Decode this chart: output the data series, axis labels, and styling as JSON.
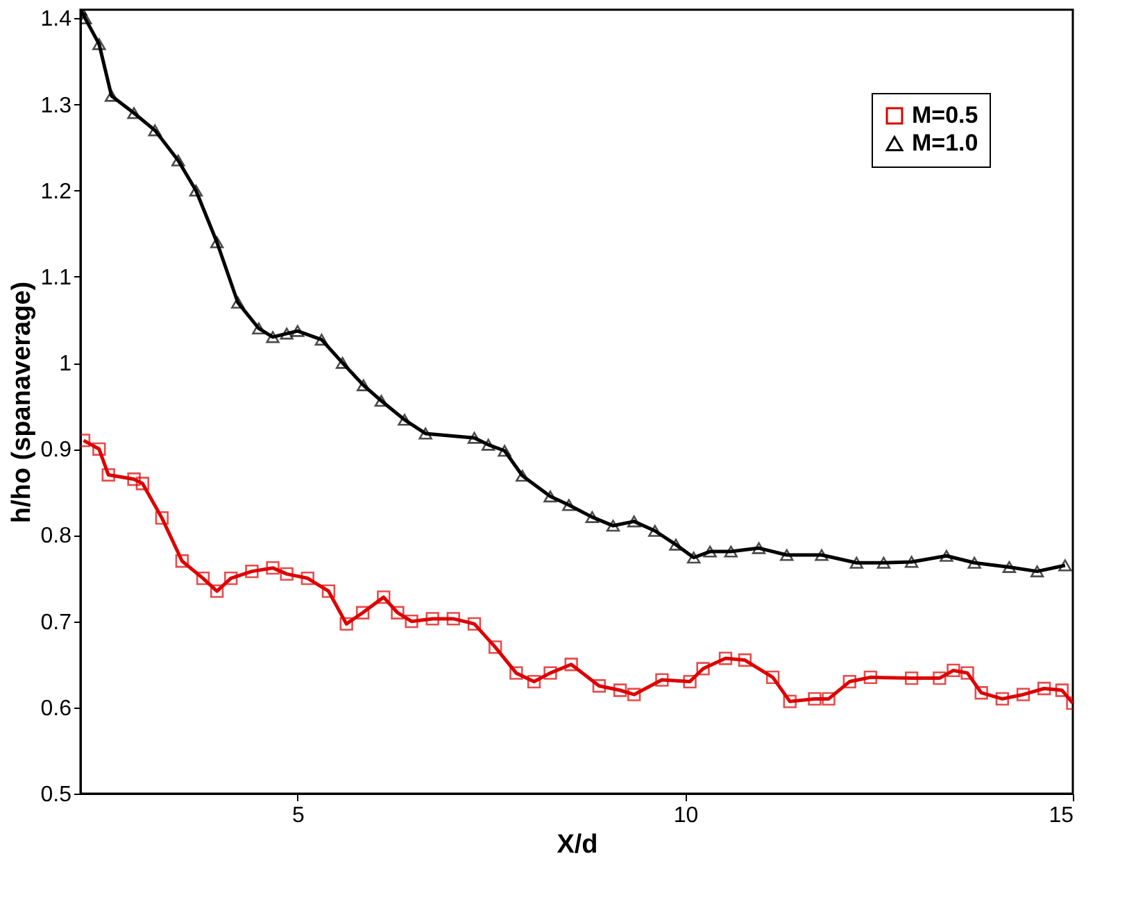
{
  "chart_data": {
    "type": "line",
    "xlabel": "X/d",
    "ylabel": "h/ho (spanaverage)",
    "xlim": [
      2.2,
      15
    ],
    "xticks": [
      5,
      10,
      15
    ],
    "ylim": [
      0.5,
      1.41
    ],
    "yticks": [
      0.5,
      0.6,
      0.7,
      0.8,
      0.9,
      1,
      1.1,
      1.2,
      1.3,
      1.4
    ],
    "grid": false,
    "legend": "top right",
    "line_style": "solid",
    "series": [
      {
        "name": "M=0.5",
        "color": "#dd0000",
        "marker": "square",
        "x": [
          2.24,
          2.44,
          2.56,
          2.89,
          3.0,
          3.25,
          3.51,
          3.78,
          3.96,
          4.14,
          4.41,
          4.68,
          4.86,
          5.13,
          5.4,
          5.63,
          5.84,
          6.11,
          6.29,
          6.47,
          6.74,
          7.01,
          7.28,
          7.55,
          7.82,
          8.05,
          8.26,
          8.53,
          8.89,
          9.16,
          9.34,
          9.7,
          10.06,
          10.23,
          10.52,
          10.77,
          11.13,
          11.35,
          11.67,
          11.85,
          12.12,
          12.39,
          12.92,
          13.28,
          13.46,
          13.64,
          13.82,
          14.09,
          14.36,
          14.63,
          14.86,
          15.0
        ],
        "values": [
          0.91,
          0.9,
          0.87,
          0.865,
          0.86,
          0.82,
          0.77,
          0.75,
          0.735,
          0.75,
          0.758,
          0.762,
          0.755,
          0.75,
          0.735,
          0.697,
          0.71,
          0.728,
          0.71,
          0.7,
          0.703,
          0.703,
          0.697,
          0.67,
          0.64,
          0.63,
          0.64,
          0.65,
          0.625,
          0.62,
          0.615,
          0.632,
          0.63,
          0.645,
          0.657,
          0.655,
          0.635,
          0.607,
          0.61,
          0.61,
          0.63,
          0.635,
          0.634,
          0.634,
          0.643,
          0.64,
          0.617,
          0.61,
          0.615,
          0.622,
          0.62,
          0.605
        ]
      },
      {
        "name": "M=1.0",
        "color": "#000000",
        "marker": "triangle",
        "x": [
          2.2,
          2.26,
          2.44,
          2.6,
          2.89,
          3.16,
          3.46,
          3.69,
          3.96,
          4.23,
          4.5,
          4.68,
          4.86,
          5.0,
          5.31,
          5.58,
          5.85,
          6.08,
          6.38,
          6.65,
          7.28,
          7.46,
          7.67,
          7.9,
          8.26,
          8.5,
          8.8,
          9.07,
          9.34,
          9.61,
          9.88,
          10.11,
          10.32,
          10.59,
          10.95,
          11.31,
          11.76,
          12.21,
          12.56,
          12.92,
          13.37,
          13.73,
          14.18,
          14.54,
          14.9
        ],
        "values": [
          1.41,
          1.4,
          1.37,
          1.31,
          1.29,
          1.27,
          1.235,
          1.2,
          1.14,
          1.07,
          1.04,
          1.03,
          1.034,
          1.037,
          1.027,
          1.0,
          0.974,
          0.956,
          0.934,
          0.918,
          0.913,
          0.905,
          0.898,
          0.869,
          0.845,
          0.835,
          0.821,
          0.811,
          0.816,
          0.805,
          0.789,
          0.774,
          0.781,
          0.781,
          0.785,
          0.777,
          0.777,
          0.768,
          0.768,
          0.769,
          0.776,
          0.768,
          0.763,
          0.758,
          0.765
        ]
      }
    ]
  }
}
